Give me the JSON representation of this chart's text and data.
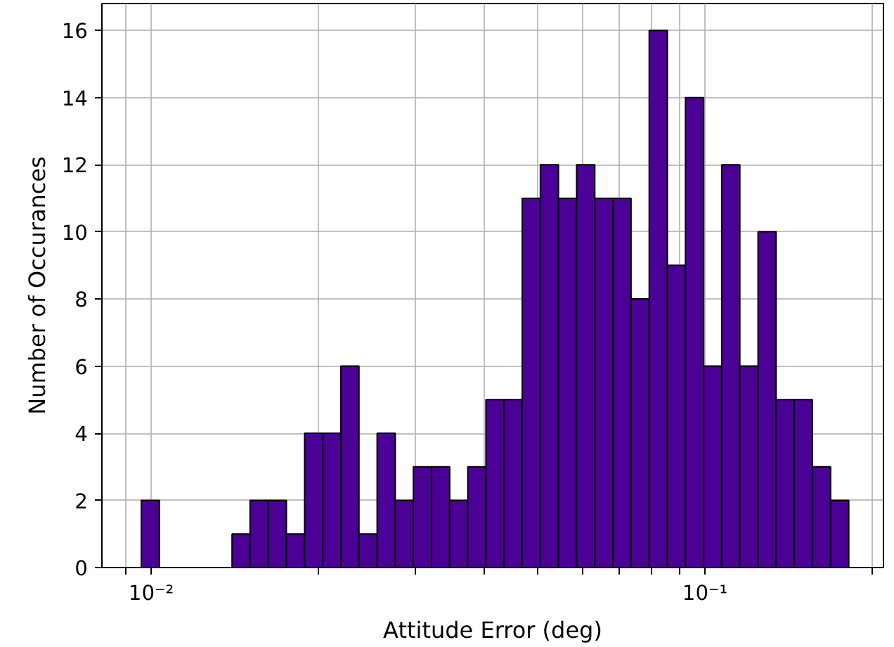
{
  "chart_data": {
    "type": "histogram",
    "xlabel": "Attitude Error (deg)",
    "ylabel": "Number of Occurances",
    "log": "x",
    "color": "#4b0096",
    "grid": true,
    "bins": [
      0.0096,
      0.01035,
      0.01116,
      0.01204,
      0.01298,
      0.014,
      0.01509,
      0.01628,
      0.01755,
      0.01893,
      0.02041,
      0.02201,
      0.02373,
      0.02559,
      0.02759,
      0.02975,
      0.03208,
      0.0346,
      0.03731,
      0.04023,
      0.04338,
      0.04678,
      0.05044,
      0.05439,
      0.05865,
      0.06325,
      0.0682,
      0.07354,
      0.0793,
      0.08552,
      0.09221,
      0.09944,
      0.1072,
      0.1156,
      0.1247,
      0.1344,
      0.145,
      0.1563,
      0.1686,
      0.1818
    ],
    "values": [
      2,
      0,
      0,
      0,
      0,
      1,
      2,
      2,
      1,
      4,
      4,
      6,
      1,
      4,
      2,
      3,
      3,
      2,
      3,
      5,
      5,
      11,
      12,
      11,
      12,
      11,
      11,
      8,
      16,
      9,
      14,
      6,
      12,
      6,
      10,
      5,
      5,
      3,
      2
    ],
    "xlim": [
      0.00815,
      0.21
    ],
    "ylim": [
      0,
      16.8
    ],
    "xticks": [
      {
        "value": 0.009,
        "label": null
      },
      {
        "value": 0.01,
        "label": "10⁻²"
      },
      {
        "value": 0.02,
        "label": null
      },
      {
        "value": 0.03,
        "label": null
      },
      {
        "value": 0.04,
        "label": null
      },
      {
        "value": 0.05,
        "label": null
      },
      {
        "value": 0.06,
        "label": null
      },
      {
        "value": 0.07,
        "label": null
      },
      {
        "value": 0.08,
        "label": null
      },
      {
        "value": 0.09,
        "label": null
      },
      {
        "value": 0.1,
        "label": "10⁻¹"
      },
      {
        "value": 0.2,
        "label": null
      }
    ],
    "yticks": [
      0,
      2,
      4,
      6,
      8,
      10,
      12,
      14,
      16
    ]
  }
}
